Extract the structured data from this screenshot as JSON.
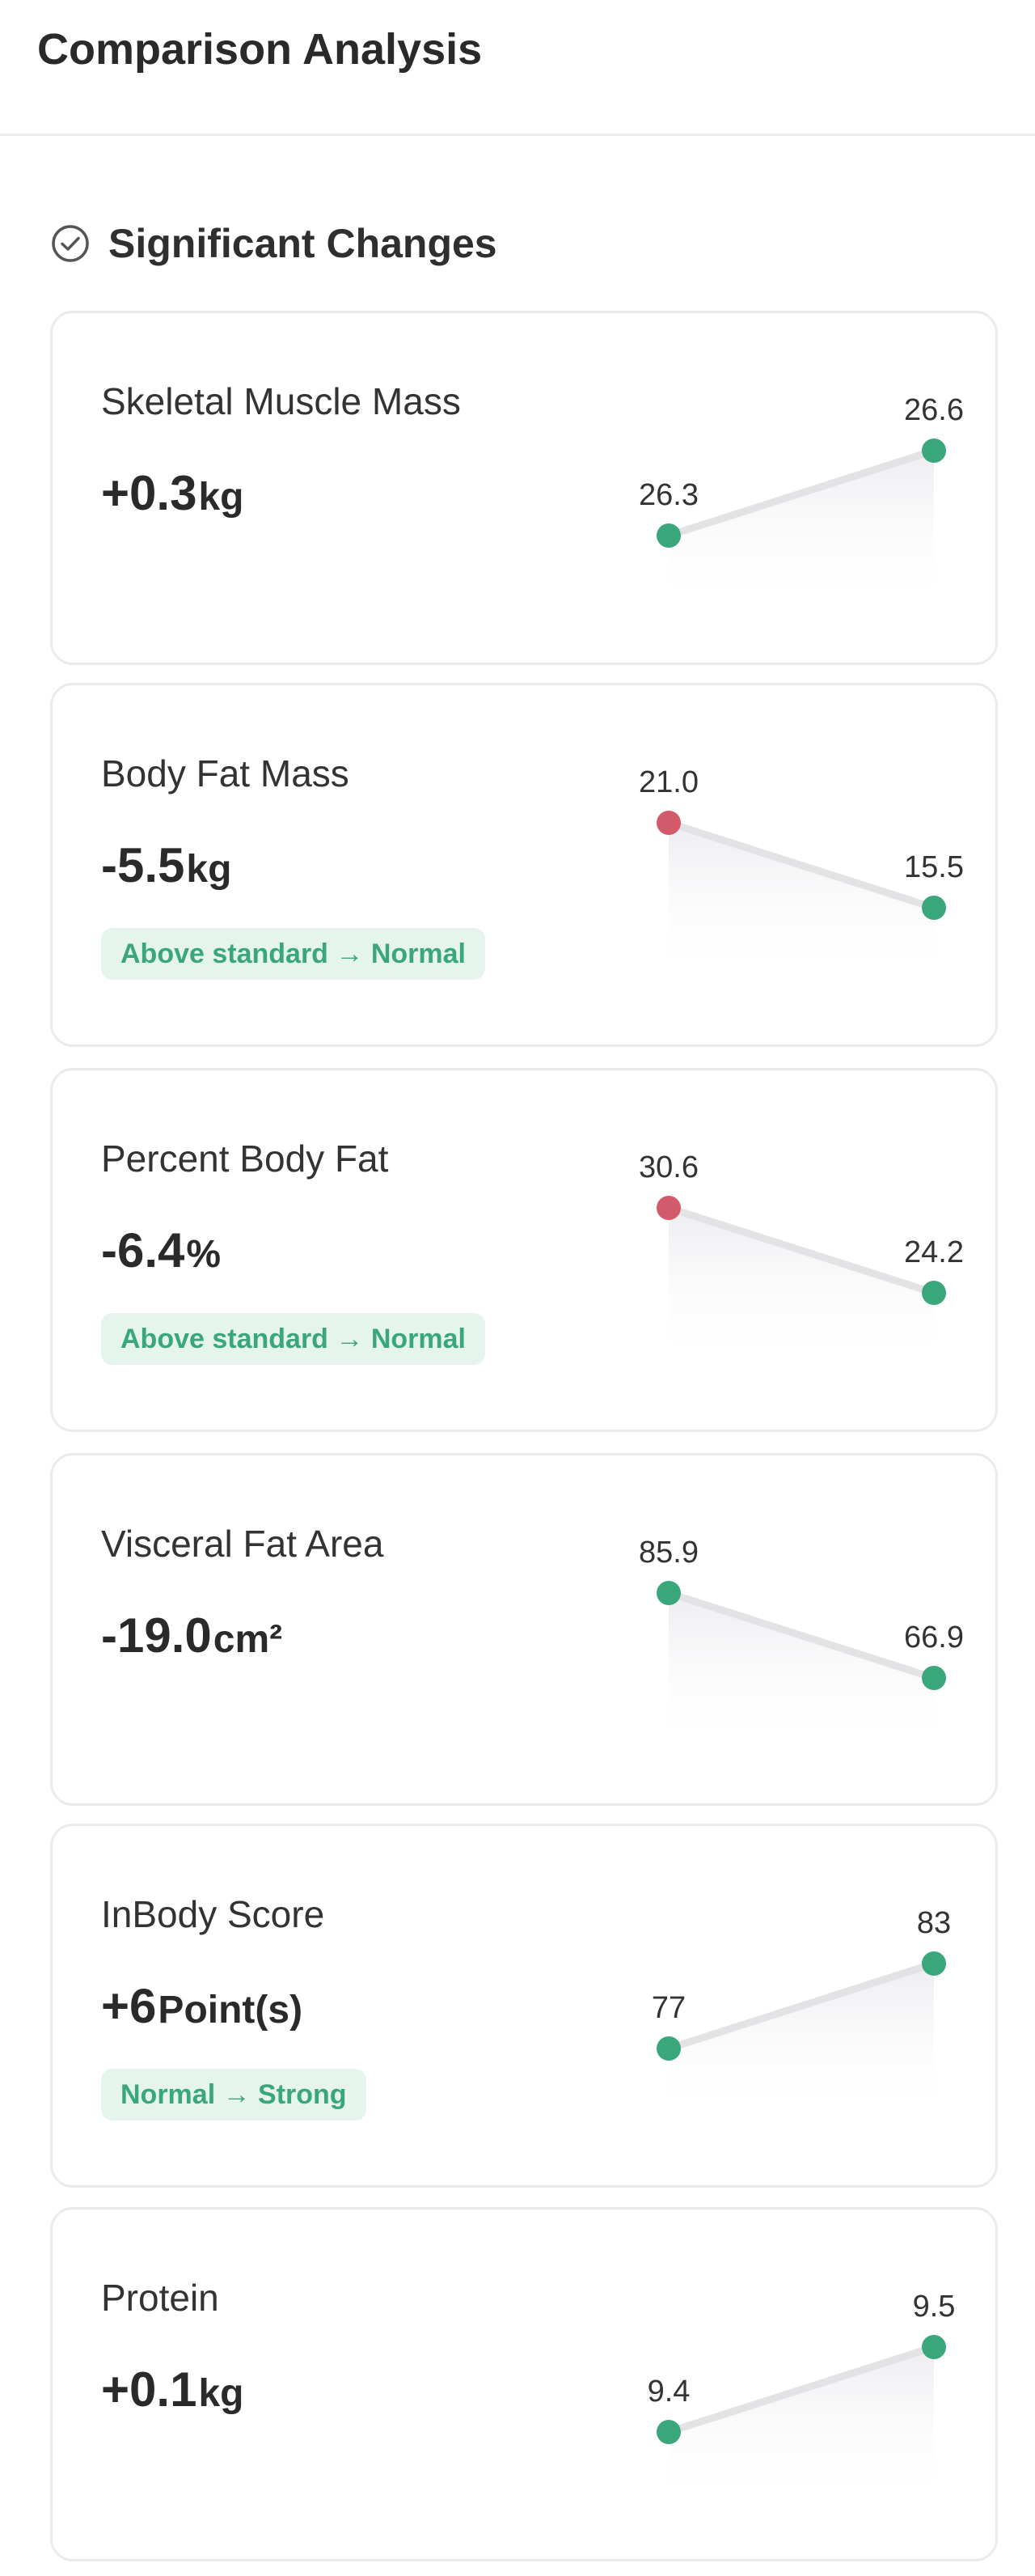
{
  "header": {
    "title": "Comparison Analysis"
  },
  "section": {
    "title": "Significant Changes",
    "icon": "check-circle-icon"
  },
  "colors": {
    "increase": "#3aa67c",
    "decrease_bad": "#d35a6a",
    "line": "#e3e3e6",
    "badge_bg": "#e6f4ee"
  },
  "metrics": [
    {
      "name": "Skeletal Muscle Mass",
      "change": "+0.3",
      "unit": "kg",
      "before": 26.3,
      "after": 26.6,
      "before_label": "26.3",
      "after_label": "26.6",
      "before_status": "good",
      "after_status": "good"
    },
    {
      "name": "Body Fat Mass",
      "change": "-5.5",
      "unit": "kg",
      "before": 21.0,
      "after": 15.5,
      "before_label": "21.0",
      "after_label": "15.5",
      "before_status": "bad",
      "after_status": "good",
      "badge": "Above standard → Normal"
    },
    {
      "name": "Percent Body Fat",
      "change": "-6.4",
      "unit": "%",
      "before": 30.6,
      "after": 24.2,
      "before_label": "30.6",
      "after_label": "24.2",
      "before_status": "bad",
      "after_status": "good",
      "badge": "Above standard → Normal"
    },
    {
      "name": "Visceral Fat Area",
      "change": "-19.0",
      "unit": "cm²",
      "before": 85.9,
      "after": 66.9,
      "before_label": "85.9",
      "after_label": "66.9",
      "before_status": "good",
      "after_status": "good"
    },
    {
      "name": "InBody Score",
      "change": "+6",
      "unit": "Point(s)",
      "before": 77,
      "after": 83,
      "before_label": "77",
      "after_label": "83",
      "before_status": "good",
      "after_status": "good",
      "badge": "Normal → Strong"
    },
    {
      "name": "Protein",
      "change": "+0.1",
      "unit": "kg",
      "before": 9.4,
      "after": 9.5,
      "before_label": "9.4",
      "after_label": "9.5",
      "before_status": "good",
      "after_status": "good"
    }
  ]
}
